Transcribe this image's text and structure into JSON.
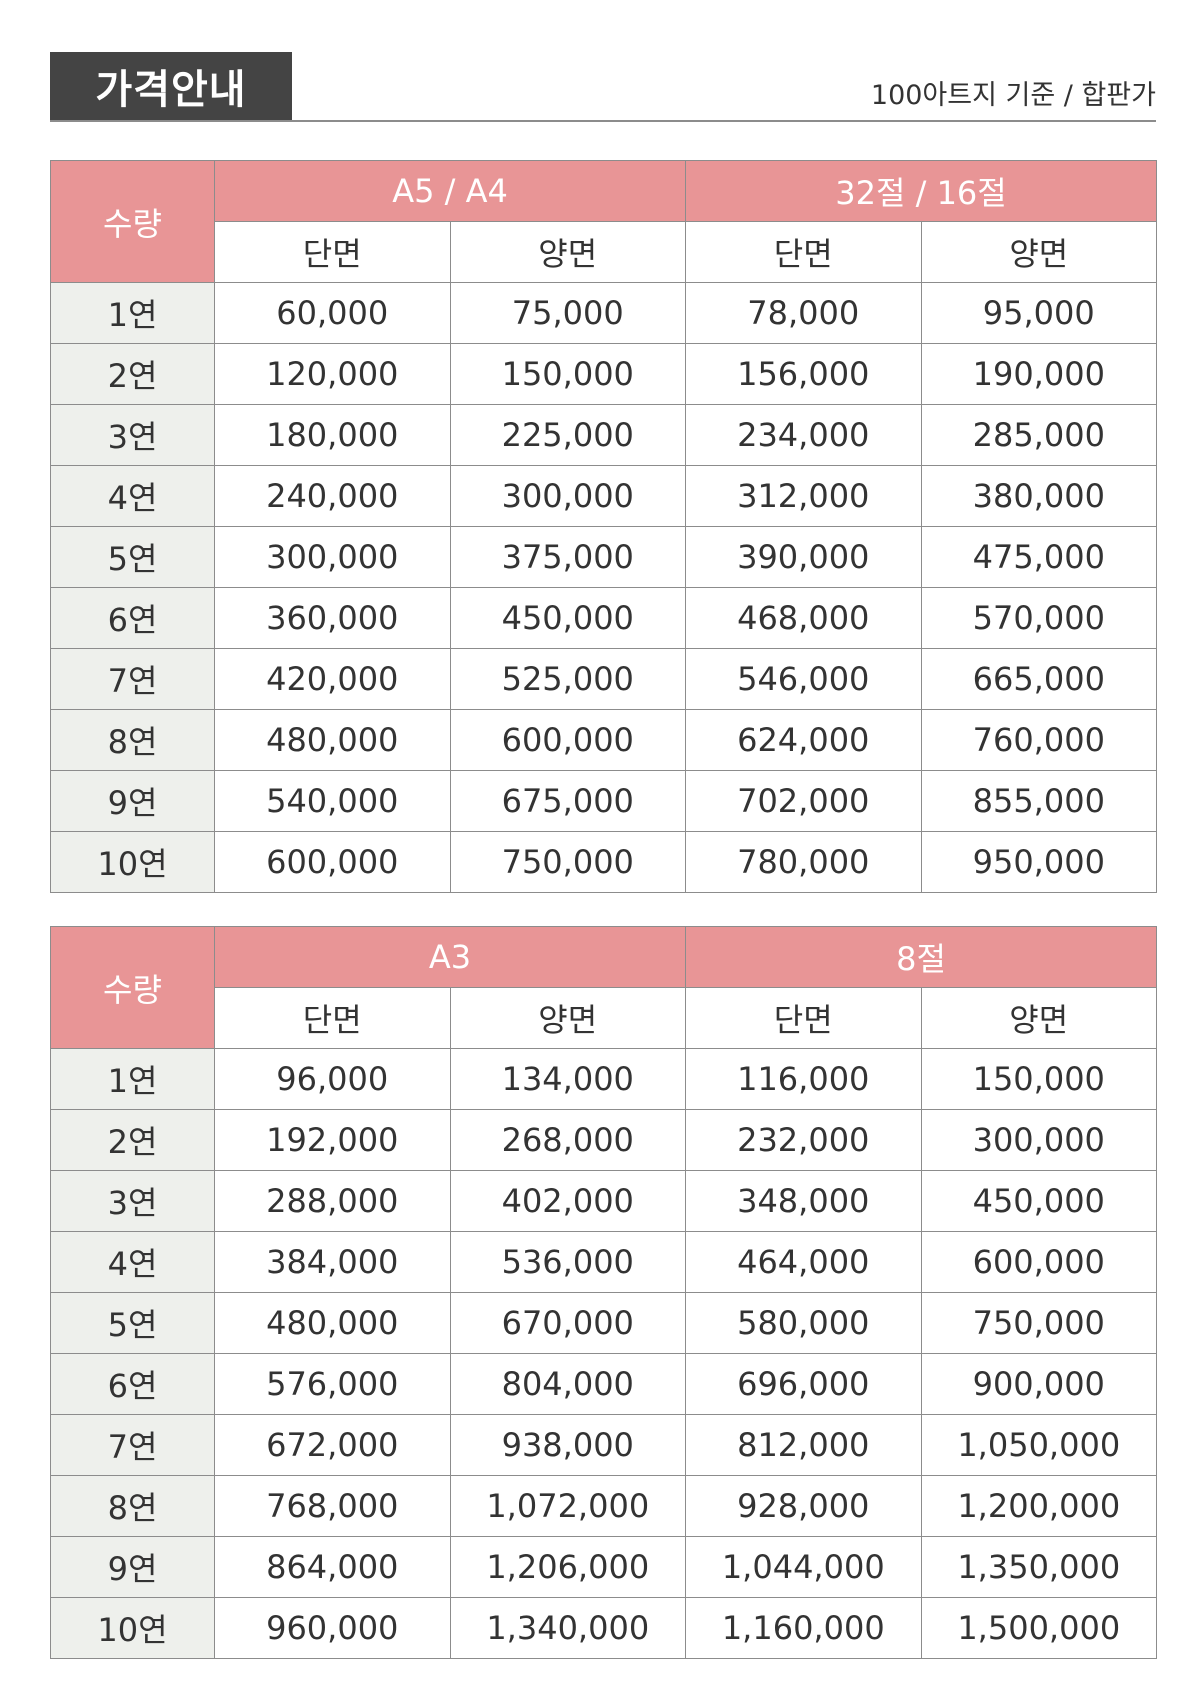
{
  "header": {
    "title": "가격안내",
    "subtitle": "100아트지 기준 / 합판가"
  },
  "tables": [
    {
      "qty_label": "수량",
      "groups": [
        "A5 / A4",
        "32절 / 16절"
      ],
      "subheaders": [
        "단면",
        "양면",
        "단면",
        "양면"
      ],
      "rows": [
        {
          "qty": "1연",
          "values": [
            "60,000",
            "75,000",
            "78,000",
            "95,000"
          ]
        },
        {
          "qty": "2연",
          "values": [
            "120,000",
            "150,000",
            "156,000",
            "190,000"
          ]
        },
        {
          "qty": "3연",
          "values": [
            "180,000",
            "225,000",
            "234,000",
            "285,000"
          ]
        },
        {
          "qty": "4연",
          "values": [
            "240,000",
            "300,000",
            "312,000",
            "380,000"
          ]
        },
        {
          "qty": "5연",
          "values": [
            "300,000",
            "375,000",
            "390,000",
            "475,000"
          ]
        },
        {
          "qty": "6연",
          "values": [
            "360,000",
            "450,000",
            "468,000",
            "570,000"
          ]
        },
        {
          "qty": "7연",
          "values": [
            "420,000",
            "525,000",
            "546,000",
            "665,000"
          ]
        },
        {
          "qty": "8연",
          "values": [
            "480,000",
            "600,000",
            "624,000",
            "760,000"
          ]
        },
        {
          "qty": "9연",
          "values": [
            "540,000",
            "675,000",
            "702,000",
            "855,000"
          ]
        },
        {
          "qty": "10연",
          "values": [
            "600,000",
            "750,000",
            "780,000",
            "950,000"
          ]
        }
      ]
    },
    {
      "qty_label": "수량",
      "groups": [
        "A3",
        "8절"
      ],
      "subheaders": [
        "단면",
        "양면",
        "단면",
        "양면"
      ],
      "rows": [
        {
          "qty": "1연",
          "values": [
            "96,000",
            "134,000",
            "116,000",
            "150,000"
          ]
        },
        {
          "qty": "2연",
          "values": [
            "192,000",
            "268,000",
            "232,000",
            "300,000"
          ]
        },
        {
          "qty": "3연",
          "values": [
            "288,000",
            "402,000",
            "348,000",
            "450,000"
          ]
        },
        {
          "qty": "4연",
          "values": [
            "384,000",
            "536,000",
            "464,000",
            "600,000"
          ]
        },
        {
          "qty": "5연",
          "values": [
            "480,000",
            "670,000",
            "580,000",
            "750,000"
          ]
        },
        {
          "qty": "6연",
          "values": [
            "576,000",
            "804,000",
            "696,000",
            "900,000"
          ]
        },
        {
          "qty": "7연",
          "values": [
            "672,000",
            "938,000",
            "812,000",
            "1,050,000"
          ]
        },
        {
          "qty": "8연",
          "values": [
            "768,000",
            "1,072,000",
            "928,000",
            "1,200,000"
          ]
        },
        {
          "qty": "9연",
          "values": [
            "864,000",
            "1,206,000",
            "1,044,000",
            "1,350,000"
          ]
        },
        {
          "qty": "10연",
          "values": [
            "960,000",
            "1,340,000",
            "1,160,000",
            "1,500,000"
          ]
        }
      ]
    }
  ]
}
